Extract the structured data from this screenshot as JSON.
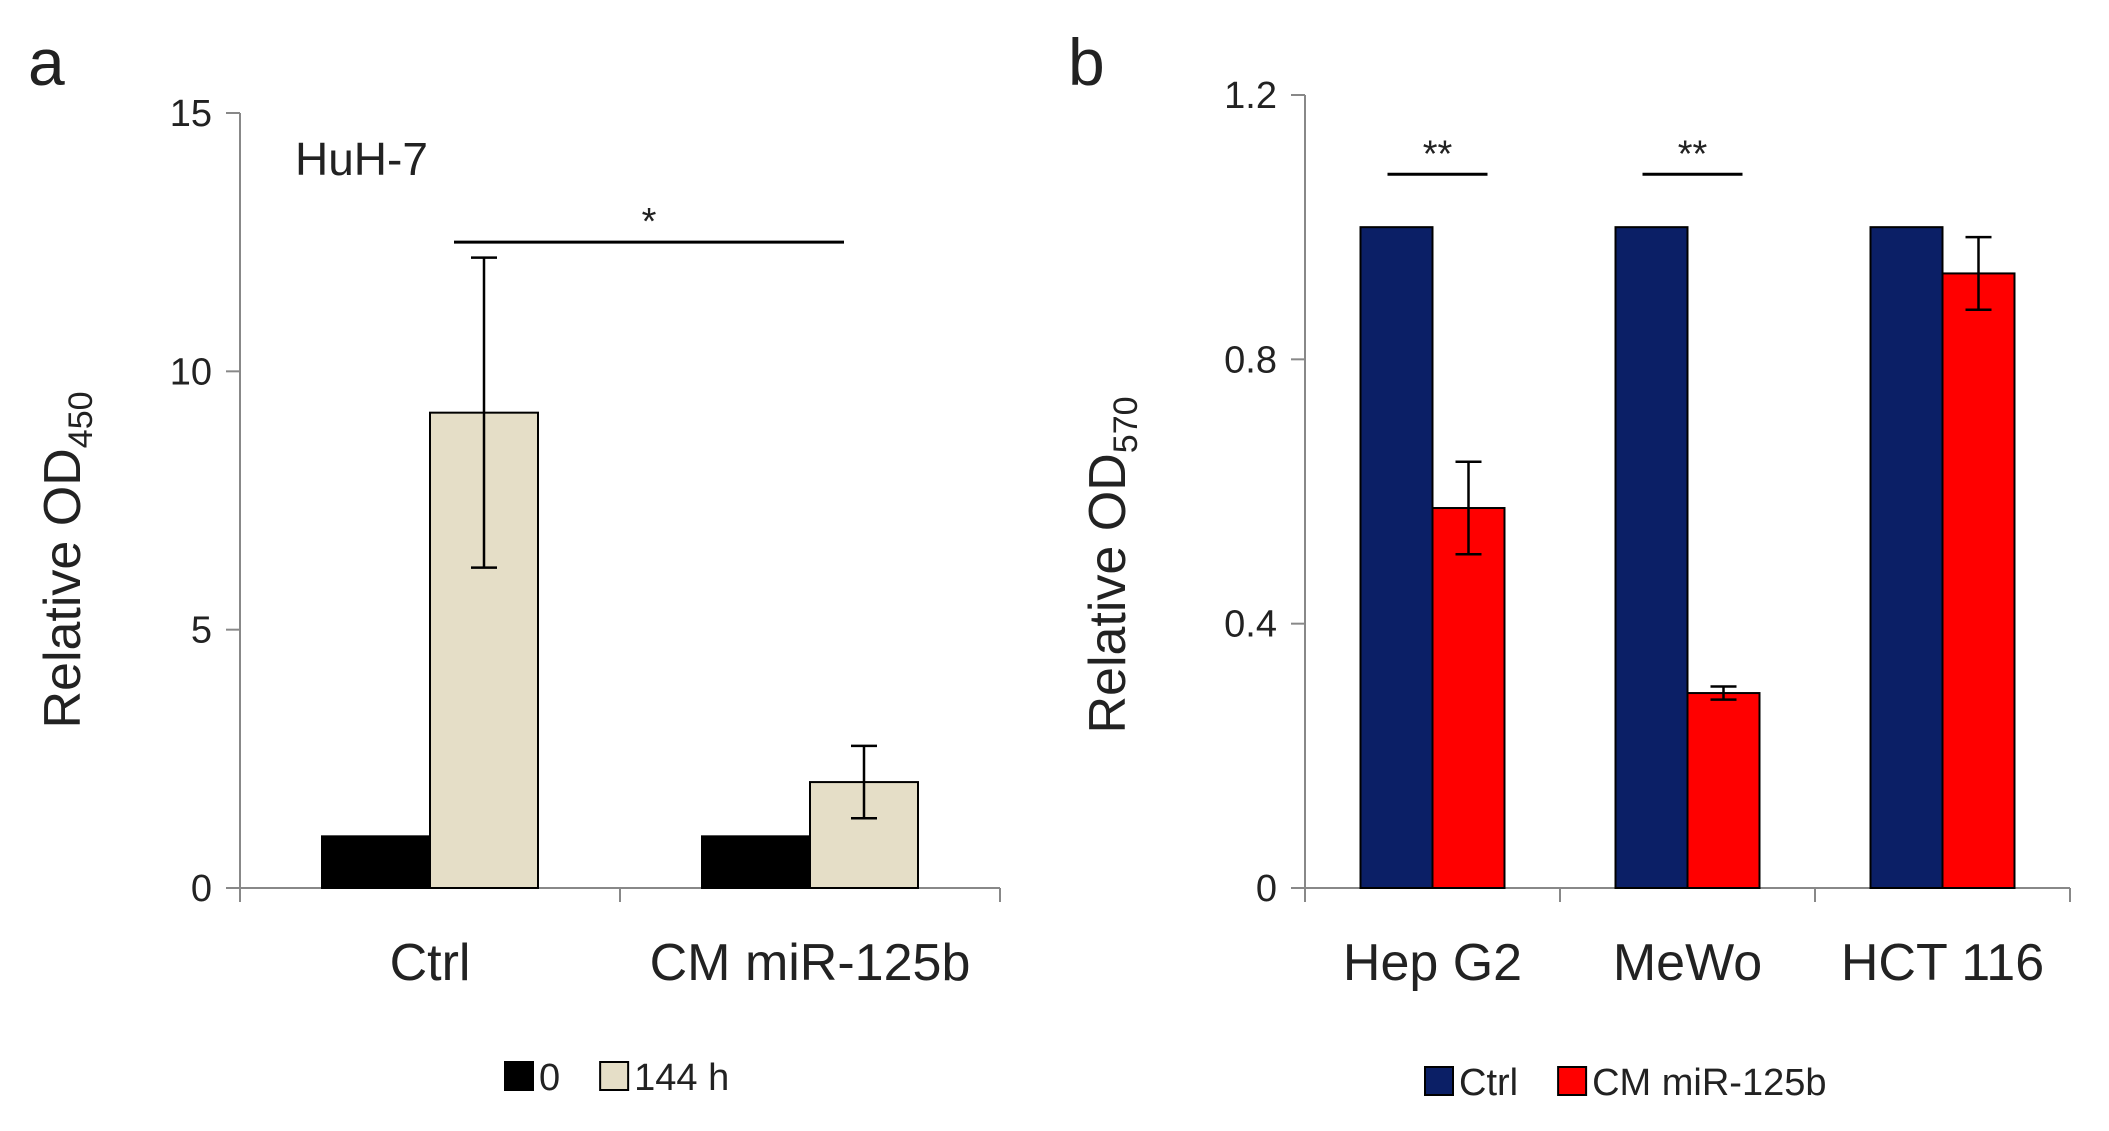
{
  "chart_data": [
    {
      "panel": "a",
      "type": "bar",
      "annotation": "HuH-7",
      "xlabel": "",
      "ylabel": "Relative OD",
      "ylabel_sub": "450",
      "ylim": [
        0,
        15
      ],
      "yticks": [
        0,
        5,
        10,
        15
      ],
      "categories": [
        "Ctrl",
        "CM miR-125b"
      ],
      "series": [
        {
          "name": "0",
          "color": "#000000",
          "values": [
            1,
            1
          ],
          "errors": [
            0,
            0
          ]
        },
        {
          "name": "144 h",
          "color": "#E5DEC7",
          "values": [
            9.2,
            2.05
          ],
          "errors": [
            3.0,
            0.7
          ]
        }
      ],
      "significance": [
        {
          "label": "*",
          "from": "Ctrl",
          "to": "CM miR-125b",
          "y": 12.5
        }
      ],
      "legend": [
        "0",
        "144 h"
      ],
      "legend_position": "bottom"
    },
    {
      "panel": "b",
      "type": "bar",
      "xlabel": "",
      "ylabel": "Relative OD",
      "ylabel_sub": "570",
      "ylim": [
        0,
        1.2
      ],
      "yticks": [
        "0",
        "0.4",
        "0.8",
        "1.2"
      ],
      "categories": [
        "Hep G2",
        "MeWo",
        "HCT 116"
      ],
      "series": [
        {
          "name": "Ctrl",
          "color": "#0B1F66",
          "values": [
            1,
            1,
            1
          ],
          "errors": [
            0,
            0,
            0
          ]
        },
        {
          "name": "CM miR-125b",
          "color": "#FF0000",
          "values": [
            0.575,
            0.295,
            0.93
          ],
          "errors": [
            0.07,
            0.01,
            0.055
          ]
        }
      ],
      "significance": [
        {
          "label": "**",
          "category": "Hep G2",
          "y": 1.08
        },
        {
          "label": "**",
          "category": "MeWo",
          "y": 1.08
        }
      ],
      "legend": [
        "Ctrl",
        "CM miR-125b"
      ],
      "legend_position": "bottom"
    }
  ]
}
